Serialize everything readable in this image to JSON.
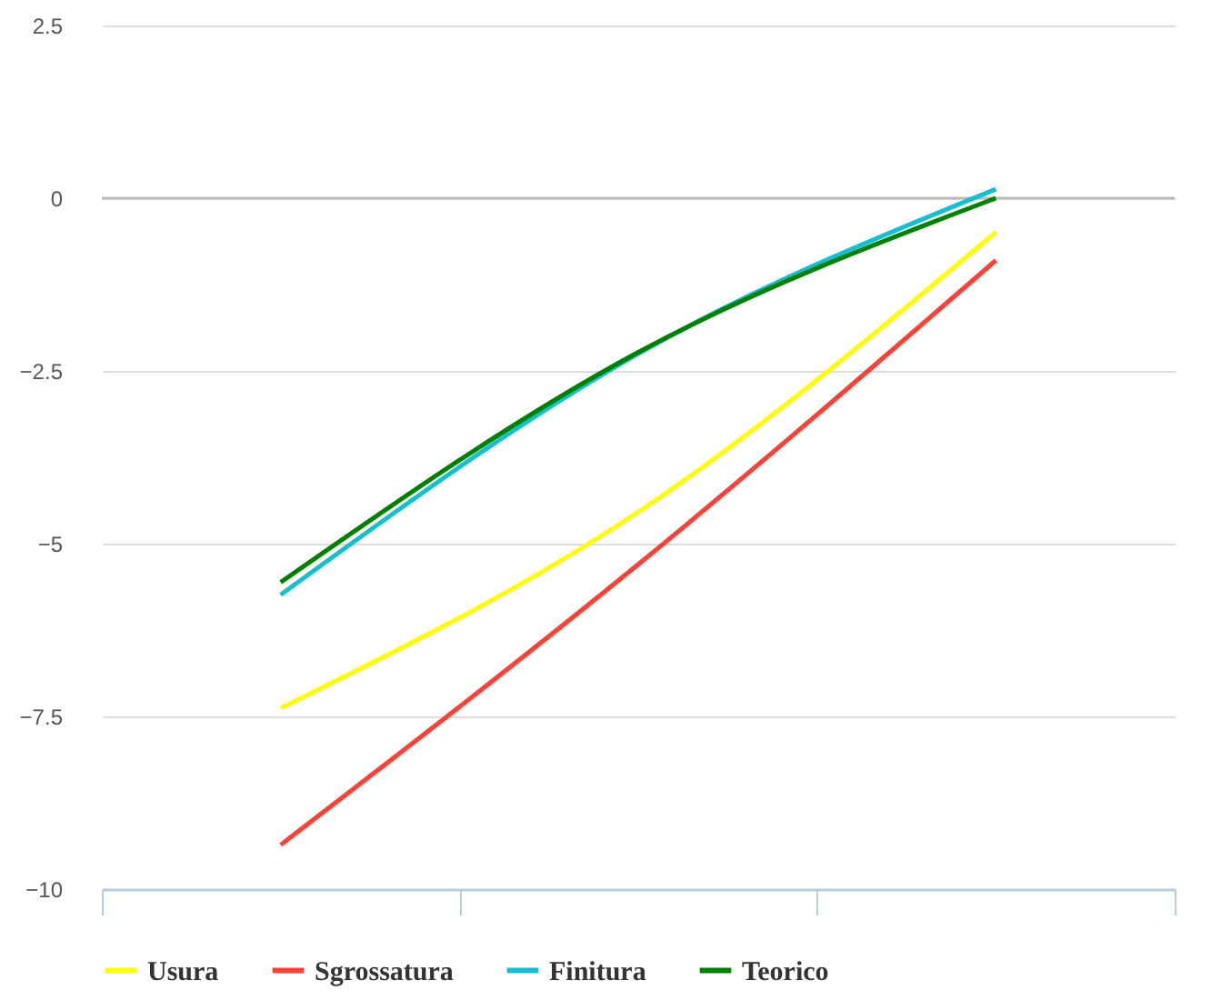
{
  "chart_data": {
    "type": "line",
    "categories": [
      null,
      null,
      null
    ],
    "series": [
      {
        "name": "Usura",
        "color": "#ffff00",
        "values": [
          -7.38,
          -4.54,
          -0.49
        ]
      },
      {
        "name": "Sgrossatura",
        "color": "#ff4136",
        "values": [
          -9.36,
          -5.3,
          -0.9
        ]
      },
      {
        "name": "Finitura",
        "color": "#17becf",
        "values": [
          -5.74,
          -2.25,
          0.13
        ]
      },
      {
        "name": "Teorico",
        "color": "#008000",
        "values": [
          -5.56,
          -2.23,
          0
        ]
      }
    ],
    "ylim": [
      -10,
      2.5
    ],
    "yticks": [
      2.5,
      0,
      -2.5,
      -5,
      -7.5,
      -10
    ],
    "grid": "y",
    "legend": "bottom",
    "marker": "none",
    "line_style": "solid"
  }
}
